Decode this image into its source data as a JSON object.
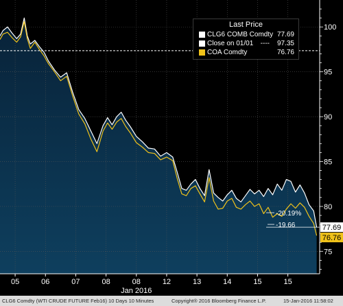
{
  "colors": {
    "background": "#000000",
    "area_fill": "#0e3f5e",
    "clg6": "#ffffff",
    "coa": "#f0c21a",
    "grid": "#555555",
    "axis_text": "#ffffff",
    "footer_bg": "#dcdcdc"
  },
  "legend": {
    "title": "Last Price",
    "items": [
      {
        "name": "CLG6 COMB Comdty",
        "value": "77.69",
        "color": "#ffffff",
        "dash": ""
      },
      {
        "name": "Close on 01/01",
        "value": "97.35",
        "color": "#ffffff",
        "dash": "----"
      },
      {
        "name": "COA Comdty",
        "value": "76.76",
        "color": "#f0c21a",
        "dash": ""
      }
    ]
  },
  "annotations": {
    "pct_clg6": "-20.19%",
    "pct_coa": "-19.66"
  },
  "last_price_tags": {
    "clg6": "77.69",
    "coa": "76.76"
  },
  "footer": {
    "left": "CLG6 Comdty (WTI CRUDE FUTURE  Feb16) 10 Days 10 Minutes",
    "middle": "Copyright® 2016 Bloomberg Finance L.P.",
    "right": "15-Jan-2016 11:58:02"
  },
  "chart_data": {
    "type": "line",
    "title": "",
    "xlabel": "",
    "ylabel": "",
    "x_ticks": [
      "05",
      "06",
      "07",
      "08",
      "08",
      "12",
      "13",
      "14",
      "15",
      "15"
    ],
    "x_sublabel": "Jan 2016",
    "ylim": [
      72.5,
      103
    ],
    "y_ticks": [
      75,
      80,
      85,
      90,
      95,
      100
    ],
    "grid": true,
    "legend_position": "top-right",
    "reference_line": {
      "name": "Close on 01/01",
      "value": 97.35
    },
    "x_range": [
      0,
      10.55
    ],
    "series": [
      {
        "name": "CLG6 COMB Comdty",
        "x": [
          0,
          0.1,
          0.25,
          0.4,
          0.55,
          0.68,
          0.8,
          0.9,
          1.0,
          1.15,
          1.3,
          1.45,
          1.6,
          1.8,
          2.0,
          2.2,
          2.4,
          2.6,
          2.8,
          3.0,
          3.2,
          3.4,
          3.55,
          3.7,
          3.85,
          4.0,
          4.15,
          4.3,
          4.5,
          4.7,
          4.9,
          5.1,
          5.3,
          5.5,
          5.7,
          5.85,
          6.0,
          6.15,
          6.3,
          6.45,
          6.6,
          6.75,
          6.9,
          7.05,
          7.2,
          7.35,
          7.5,
          7.65,
          7.8,
          7.95,
          8.1,
          8.25,
          8.4,
          8.55,
          8.7,
          8.85,
          9.0,
          9.15,
          9.3,
          9.45,
          9.6,
          9.75,
          9.9,
          10.05,
          10.2,
          10.35,
          10.45
        ],
        "values": [
          99.0,
          99.6,
          100.0,
          99.3,
          98.7,
          99.2,
          101.0,
          99.0,
          98.1,
          98.5,
          97.8,
          97.2,
          96.2,
          95.2,
          94.4,
          94.9,
          92.7,
          90.8,
          89.8,
          88.4,
          87.0,
          89.0,
          89.9,
          89.1,
          90.0,
          90.5,
          89.6,
          88.9,
          87.8,
          87.2,
          86.5,
          86.4,
          85.6,
          86.0,
          85.5,
          83.8,
          82.0,
          81.8,
          82.5,
          83.0,
          82.0,
          81.2,
          84.1,
          81.5,
          81.0,
          80.6,
          81.3,
          81.8,
          80.9,
          80.5,
          81.2,
          81.9,
          81.4,
          81.8,
          81.1,
          82.0,
          81.3,
          82.5,
          81.8,
          83.0,
          82.8,
          81.6,
          82.4,
          81.5,
          80.2,
          79.5,
          77.69
        ]
      },
      {
        "name": "COA Comdty",
        "x": [
          0,
          0.1,
          0.25,
          0.4,
          0.55,
          0.68,
          0.8,
          0.9,
          1.0,
          1.15,
          1.3,
          1.45,
          1.6,
          1.8,
          2.0,
          2.2,
          2.4,
          2.6,
          2.8,
          3.0,
          3.2,
          3.4,
          3.55,
          3.7,
          3.85,
          4.0,
          4.15,
          4.3,
          4.5,
          4.7,
          4.9,
          5.1,
          5.3,
          5.5,
          5.7,
          5.85,
          6.0,
          6.15,
          6.3,
          6.45,
          6.6,
          6.75,
          6.9,
          7.05,
          7.2,
          7.35,
          7.5,
          7.65,
          7.8,
          7.95,
          8.1,
          8.25,
          8.4,
          8.55,
          8.7,
          8.85,
          9.0,
          9.15,
          9.3,
          9.45,
          9.6,
          9.75,
          9.9,
          10.05,
          10.2,
          10.35,
          10.45
        ],
        "values": [
          98.6,
          99.2,
          99.4,
          98.8,
          98.3,
          98.9,
          100.6,
          98.7,
          97.6,
          98.3,
          97.5,
          96.8,
          95.9,
          95.0,
          94.0,
          94.5,
          92.3,
          90.3,
          89.2,
          87.5,
          86.1,
          88.4,
          89.3,
          88.6,
          89.4,
          89.8,
          88.9,
          88.2,
          87.1,
          86.6,
          86.0,
          85.9,
          85.2,
          85.5,
          85.1,
          83.1,
          81.4,
          81.2,
          82.0,
          82.3,
          81.4,
          80.5,
          83.2,
          80.6,
          79.7,
          79.8,
          80.6,
          80.9,
          79.9,
          79.7,
          80.2,
          80.6,
          80.0,
          80.3,
          79.2,
          79.9,
          78.8,
          79.2,
          78.9,
          79.7,
          80.3,
          79.8,
          80.4,
          79.9,
          78.9,
          78.1,
          76.76
        ]
      }
    ]
  }
}
